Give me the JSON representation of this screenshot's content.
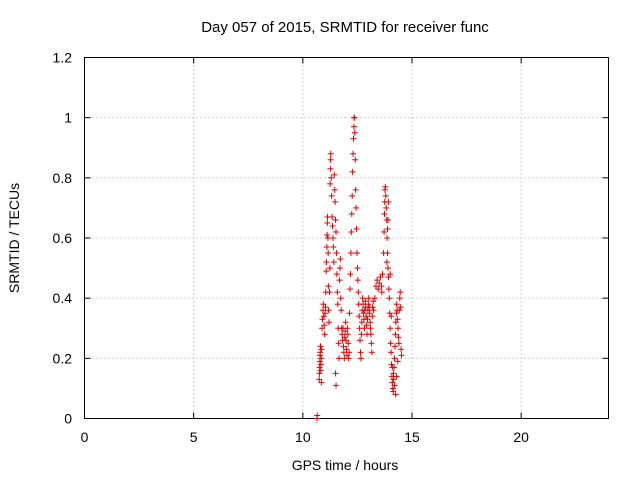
{
  "chart_data": {
    "type": "scatter",
    "title": "Day 057 of 2015, SRMTID for receiver func",
    "xlabel": "GPS time / hours",
    "ylabel": "SRMTID / TECUs",
    "xlim": [
      0,
      24
    ],
    "ylim": [
      0,
      1.2
    ],
    "xticks": [
      0,
      5,
      10,
      15,
      20
    ],
    "xtick_labels": [
      "0",
      "5",
      "10",
      "15",
      "20"
    ],
    "yticks": [
      0,
      0.2,
      0.4,
      0.6,
      0.8,
      1,
      1.2
    ],
    "ytick_labels": [
      "0",
      "0.2",
      "0.4",
      "0.6",
      "0.8",
      "1",
      "1.2"
    ],
    "grid": true,
    "marker": "+",
    "series": [
      {
        "name": "SRMTID",
        "color": "#e00000",
        "points": [
          [
            10.65,
            0.0
          ],
          [
            10.66,
            0.01
          ],
          [
            10.75,
            0.13
          ],
          [
            10.76,
            0.15
          ],
          [
            10.77,
            0.17
          ],
          [
            10.78,
            0.19
          ],
          [
            10.79,
            0.21
          ],
          [
            10.8,
            0.22
          ],
          [
            10.81,
            0.24
          ],
          [
            10.82,
            0.16
          ],
          [
            10.83,
            0.18
          ],
          [
            10.84,
            0.2
          ],
          [
            10.85,
            0.12
          ],
          [
            10.86,
            0.23
          ],
          [
            10.88,
            0.3
          ],
          [
            10.9,
            0.33
          ],
          [
            10.92,
            0.36
          ],
          [
            10.94,
            0.38
          ],
          [
            10.96,
            0.34
          ],
          [
            10.98,
            0.31
          ],
          [
            11.0,
            0.28
          ],
          [
            11.02,
            0.35
          ],
          [
            11.04,
            0.37
          ],
          [
            11.05,
            0.42
          ],
          [
            11.07,
            0.49
          ],
          [
            11.08,
            0.52
          ],
          [
            11.1,
            0.57
          ],
          [
            11.11,
            0.61
          ],
          [
            11.12,
            0.65
          ],
          [
            11.13,
            0.67
          ],
          [
            11.15,
            0.6
          ],
          [
            11.16,
            0.55
          ],
          [
            11.17,
            0.44
          ],
          [
            11.18,
            0.36
          ],
          [
            11.2,
            0.32
          ],
          [
            11.22,
            0.42
          ],
          [
            11.24,
            0.5
          ],
          [
            11.25,
            0.78
          ],
          [
            11.26,
            0.83
          ],
          [
            11.27,
            0.86
          ],
          [
            11.28,
            0.88
          ],
          [
            11.3,
            0.8
          ],
          [
            11.32,
            0.74
          ],
          [
            11.34,
            0.67
          ],
          [
            11.36,
            0.64
          ],
          [
            11.38,
            0.6
          ],
          [
            11.4,
            0.57
          ],
          [
            11.42,
            0.52
          ],
          [
            11.44,
            0.81
          ],
          [
            11.46,
            0.76
          ],
          [
            11.48,
            0.72
          ],
          [
            11.5,
            0.66
          ],
          [
            11.52,
            0.62
          ],
          [
            11.54,
            0.55
          ],
          [
            11.56,
            0.48
          ],
          [
            11.58,
            0.42
          ],
          [
            11.6,
            0.38
          ],
          [
            11.62,
            0.3
          ],
          [
            11.64,
            0.25
          ],
          [
            11.66,
            0.2
          ],
          [
            11.5,
            0.15
          ],
          [
            11.52,
            0.11
          ],
          [
            11.68,
            0.46
          ],
          [
            11.7,
            0.5
          ],
          [
            11.72,
            0.53
          ],
          [
            11.74,
            0.4
          ],
          [
            11.76,
            0.36
          ],
          [
            11.78,
            0.3
          ],
          [
            11.8,
            0.28
          ],
          [
            11.82,
            0.26
          ],
          [
            11.84,
            0.3
          ],
          [
            11.86,
            0.24
          ],
          [
            11.88,
            0.22
          ],
          [
            11.9,
            0.2
          ],
          [
            11.92,
            0.27
          ],
          [
            11.94,
            0.29
          ],
          [
            11.96,
            0.32
          ],
          [
            11.98,
            0.26
          ],
          [
            12.0,
            0.23
          ],
          [
            12.02,
            0.21
          ],
          [
            12.04,
            0.3
          ],
          [
            12.06,
            0.28
          ],
          [
            12.08,
            0.25
          ],
          [
            12.1,
            0.2
          ],
          [
            12.12,
            0.22
          ],
          [
            12.14,
            0.35
          ],
          [
            12.16,
            0.43
          ],
          [
            12.18,
            0.48
          ],
          [
            12.2,
            0.55
          ],
          [
            12.22,
            0.62
          ],
          [
            12.24,
            0.68
          ],
          [
            12.26,
            0.74
          ],
          [
            12.28,
            0.82
          ],
          [
            12.3,
            0.88
          ],
          [
            12.32,
            0.93
          ],
          [
            12.34,
            0.97
          ],
          [
            12.35,
            1.0
          ],
          [
            12.36,
            1.0
          ],
          [
            12.38,
            0.95
          ],
          [
            12.4,
            0.86
          ],
          [
            12.42,
            0.76
          ],
          [
            12.44,
            0.7
          ],
          [
            12.46,
            0.63
          ],
          [
            12.48,
            0.55
          ],
          [
            12.5,
            0.5
          ],
          [
            12.52,
            0.46
          ],
          [
            12.54,
            0.42
          ],
          [
            12.56,
            0.38
          ],
          [
            12.58,
            0.34
          ],
          [
            12.6,
            0.3
          ],
          [
            12.62,
            0.26
          ],
          [
            12.64,
            0.22
          ],
          [
            12.66,
            0.2
          ],
          [
            12.68,
            0.28
          ],
          [
            12.7,
            0.32
          ],
          [
            12.72,
            0.36
          ],
          [
            12.74,
            0.4
          ],
          [
            12.76,
            0.38
          ],
          [
            12.78,
            0.35
          ],
          [
            12.8,
            0.33
          ],
          [
            12.82,
            0.3
          ],
          [
            12.84,
            0.36
          ],
          [
            12.86,
            0.39
          ],
          [
            12.88,
            0.37
          ],
          [
            12.9,
            0.34
          ],
          [
            12.92,
            0.31
          ],
          [
            12.94,
            0.28
          ],
          [
            12.96,
            0.33
          ],
          [
            12.98,
            0.36
          ],
          [
            13.0,
            0.38
          ],
          [
            13.02,
            0.4
          ],
          [
            13.04,
            0.37
          ],
          [
            13.06,
            0.35
          ],
          [
            13.08,
            0.32
          ],
          [
            13.1,
            0.3
          ],
          [
            13.12,
            0.28
          ],
          [
            13.14,
            0.25
          ],
          [
            13.16,
            0.22
          ],
          [
            13.18,
            0.34
          ],
          [
            13.2,
            0.37
          ],
          [
            13.22,
            0.39
          ],
          [
            13.24,
            0.36
          ],
          [
            13.3,
            0.4
          ],
          [
            13.35,
            0.44
          ],
          [
            13.4,
            0.46
          ],
          [
            13.45,
            0.43
          ],
          [
            13.5,
            0.45
          ],
          [
            13.55,
            0.47
          ],
          [
            13.6,
            0.44
          ],
          [
            13.62,
            0.42
          ],
          [
            13.65,
            0.48
          ],
          [
            13.7,
            0.55
          ],
          [
            13.72,
            0.62
          ],
          [
            13.74,
            0.68
          ],
          [
            13.75,
            0.72
          ],
          [
            13.76,
            0.76
          ],
          [
            13.78,
            0.77
          ],
          [
            13.8,
            0.74
          ],
          [
            13.82,
            0.7
          ],
          [
            13.84,
            0.66
          ],
          [
            13.86,
            0.6
          ],
          [
            13.88,
            0.55
          ],
          [
            13.9,
            0.5
          ],
          [
            13.92,
            0.47
          ],
          [
            13.94,
            0.43
          ],
          [
            13.96,
            0.4
          ],
          [
            13.98,
            0.35
          ],
          [
            14.0,
            0.3
          ],
          [
            14.02,
            0.25
          ],
          [
            14.04,
            0.22
          ],
          [
            14.06,
            0.18
          ],
          [
            14.08,
            0.14
          ],
          [
            14.1,
            0.12
          ],
          [
            14.12,
            0.1
          ],
          [
            14.14,
            0.09
          ],
          [
            14.16,
            0.13
          ],
          [
            14.18,
            0.17
          ],
          [
            14.2,
            0.2
          ],
          [
            14.22,
            0.24
          ],
          [
            14.24,
            0.28
          ],
          [
            14.26,
            0.32
          ],
          [
            14.28,
            0.35
          ],
          [
            14.3,
            0.38
          ],
          [
            14.32,
            0.36
          ],
          [
            14.34,
            0.33
          ],
          [
            14.36,
            0.3
          ],
          [
            14.38,
            0.27
          ],
          [
            14.4,
            0.25
          ],
          [
            14.42,
            0.36
          ],
          [
            14.44,
            0.4
          ],
          [
            14.46,
            0.42
          ],
          [
            14.48,
            0.37
          ],
          [
            14.5,
            0.23
          ],
          [
            14.52,
            0.21
          ],
          [
            13.85,
            0.52
          ],
          [
            13.88,
            0.63
          ],
          [
            13.9,
            0.66
          ],
          [
            13.92,
            0.72
          ],
          [
            14.0,
            0.48
          ],
          [
            14.05,
            0.34
          ],
          [
            14.1,
            0.17
          ],
          [
            14.15,
            0.15
          ],
          [
            14.2,
            0.11
          ],
          [
            14.25,
            0.08
          ],
          [
            14.3,
            0.14
          ],
          [
            14.35,
            0.19
          ]
        ]
      }
    ]
  }
}
